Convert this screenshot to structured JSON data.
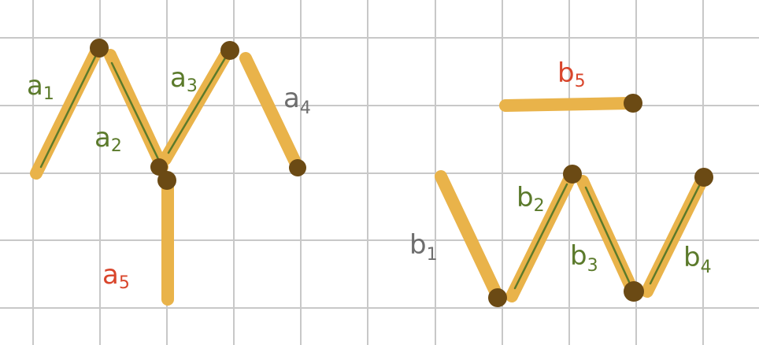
{
  "colors": {
    "grid": "#c8c8c8",
    "stick": "#e9b34a",
    "stick_line": "#5c7a2a",
    "head": "#6b4a14",
    "label_green": "#5b7a2b",
    "label_gray": "#6e6e6e",
    "label_red": "#d9462c"
  },
  "figure_a": {
    "labels": [
      {
        "id": "a1",
        "letter": "a",
        "sub": "1",
        "color": "green"
      },
      {
        "id": "a2",
        "letter": "a",
        "sub": "2",
        "color": "green"
      },
      {
        "id": "a3",
        "letter": "a",
        "sub": "3",
        "color": "green"
      },
      {
        "id": "a4",
        "letter": "a",
        "sub": "4",
        "color": "gray"
      },
      {
        "id": "a5",
        "letter": "a",
        "sub": "5",
        "color": "red"
      }
    ]
  },
  "figure_b": {
    "labels": [
      {
        "id": "b1",
        "letter": "b",
        "sub": "1",
        "color": "gray"
      },
      {
        "id": "b2",
        "letter": "b",
        "sub": "2",
        "color": "green"
      },
      {
        "id": "b3",
        "letter": "b",
        "sub": "3",
        "color": "green"
      },
      {
        "id": "b4",
        "letter": "b",
        "sub": "4",
        "color": "green"
      },
      {
        "id": "b5",
        "letter": "b",
        "sub": "5",
        "color": "red"
      }
    ]
  }
}
